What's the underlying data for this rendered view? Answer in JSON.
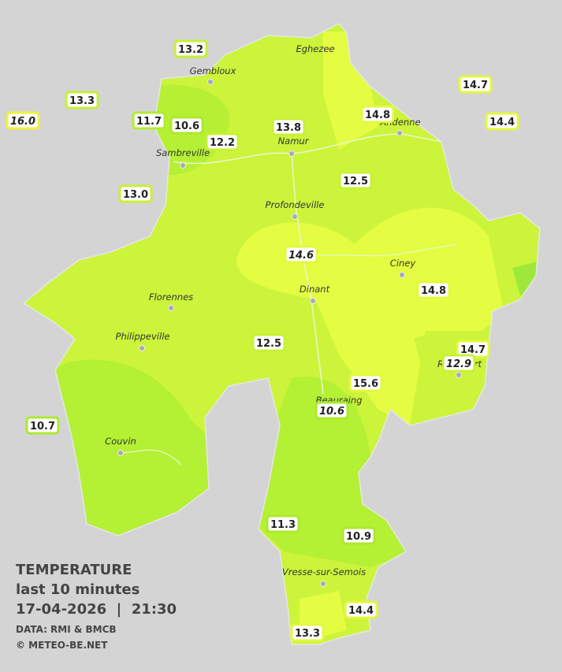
{
  "cities": [
    "Eghezee",
    "Gembloux",
    "Andenne",
    "Namur",
    "Sambreville",
    "Profondeville",
    "Ciney",
    "Dinant",
    "Florennes",
    "Philippeville",
    "Rochefort",
    "Beauraing",
    "Couvin",
    "Vresse-sur-Semois"
  ],
  "stations": [
    {
      "label": "13.2"
    },
    {
      "label": "13.3"
    },
    {
      "label": "16.0",
      "italic": true
    },
    {
      "label": "11.7"
    },
    {
      "label": "10.6"
    },
    {
      "label": "12.2"
    },
    {
      "label": "13.8"
    },
    {
      "label": "14.8"
    },
    {
      "label": "14.7"
    },
    {
      "label": "14.4"
    },
    {
      "label": "13.0"
    },
    {
      "label": "12.5"
    },
    {
      "label": "14.6",
      "italic": true
    },
    {
      "label": "14.8"
    },
    {
      "label": "12.5"
    },
    {
      "label": "14.7"
    },
    {
      "label": "12.9",
      "italic": true
    },
    {
      "label": "15.6"
    },
    {
      "label": "10.6",
      "italic": true
    },
    {
      "label": "10.7"
    },
    {
      "label": "11.3"
    },
    {
      "label": "10.9"
    },
    {
      "label": "14.4"
    },
    {
      "label": "13.3"
    }
  ],
  "legend": {
    "title": "TEMPERATURE",
    "period": "last 10 minutes",
    "datetime": "17-04-2026  |  21:30",
    "source": "DATA: RMI & BMCB",
    "credit": "© METEO-BE.NET"
  }
}
